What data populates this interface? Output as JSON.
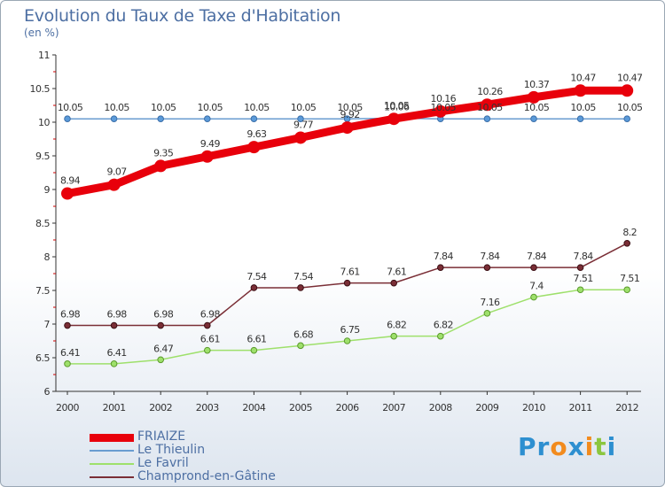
{
  "chart_title": "Evolution du Taux de Taxe d'Habitation",
  "chart_subtitle": "(en %)",
  "logo": {
    "text": "Proxiti",
    "letters": [
      "P",
      "r",
      "o",
      "x",
      "i",
      "t",
      "i"
    ],
    "colors": [
      "#2d8fd0",
      "#2d8fd0",
      "#f28b1e",
      "#2d8fd0",
      "#f28b1e",
      "#8cc63f",
      "#2d8fd0"
    ]
  },
  "chart_data": {
    "type": "line",
    "title": "Evolution du Taux de Taxe d'Habitation",
    "ylabel": "(en %)",
    "x": [
      "2000",
      "2001",
      "2002",
      "2003",
      "2004",
      "2005",
      "2006",
      "2007",
      "2008",
      "2009",
      "2010",
      "2011",
      "2012"
    ],
    "ylim": [
      6,
      11
    ],
    "yticks": [
      6,
      6.5,
      7,
      7.5,
      8,
      8.5,
      9,
      9.5,
      10,
      10.5,
      11
    ],
    "ytick_labels": [
      "6",
      "6.5",
      "7",
      "7.5",
      "8",
      "8.5",
      "9",
      "9.5",
      "10",
      "10.5",
      "11"
    ],
    "grid": false,
    "legend": "bottom-left",
    "series": [
      {
        "name": "FRIAIZE",
        "color": "#e8000b",
        "values": [
          8.94,
          9.07,
          9.35,
          9.49,
          9.63,
          9.77,
          9.92,
          10.05,
          10.16,
          10.26,
          10.37,
          10.47,
          10.47
        ],
        "labels": [
          "8.94",
          "9.07",
          "9.35",
          "9.49",
          "9.63",
          "9.77",
          "9.92",
          "10.05",
          "10.16",
          "10.26",
          "10.37",
          "10.47",
          "10.47"
        ]
      },
      {
        "name": "Le Thieulin",
        "color": "#6a9cd0",
        "values": [
          10.05,
          10.05,
          10.05,
          10.05,
          10.05,
          10.05,
          10.05,
          10.06,
          10.05,
          10.05,
          10.05,
          10.05,
          10.05
        ],
        "labels": [
          "10.05",
          "10.05",
          "10.05",
          "10.05",
          "10.05",
          "10.05",
          "10.05",
          "10.06",
          "10.05",
          "10.05",
          "10.05",
          "10.05",
          "10.05"
        ]
      },
      {
        "name": "Le Favril",
        "color": "#9ee06b",
        "values": [
          6.41,
          6.41,
          6.47,
          6.61,
          6.61,
          6.68,
          6.75,
          6.82,
          6.82,
          7.16,
          7.4,
          7.51,
          7.51
        ],
        "labels": [
          "6.41",
          "6.41",
          "6.47",
          "6.61",
          "6.61",
          "6.68",
          "6.75",
          "6.82",
          "6.82",
          "7.16",
          "7.4",
          "7.51",
          "7.51"
        ]
      },
      {
        "name": "Champrond-en-Gâtine",
        "color": "#7a2e36",
        "values": [
          6.98,
          6.98,
          6.98,
          6.98,
          7.54,
          7.54,
          7.61,
          7.61,
          7.84,
          7.84,
          7.84,
          7.84,
          8.2
        ],
        "labels": [
          "6.98",
          "6.98",
          "6.98",
          "6.98",
          "7.54",
          "7.54",
          "7.61",
          "7.61",
          "7.84",
          "7.84",
          "7.84",
          "7.84",
          "8.2"
        ]
      }
    ]
  }
}
